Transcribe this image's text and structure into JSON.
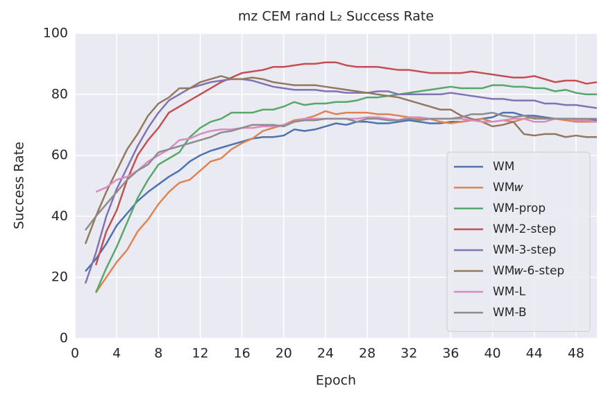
{
  "chart_data": {
    "type": "line",
    "title": "mz CEM rand L₂ Success Rate",
    "x_label": "Epoch",
    "y_label": "Success Rate",
    "x": [
      1,
      2,
      3,
      4,
      5,
      6,
      7,
      8,
      9,
      10,
      11,
      12,
      13,
      14,
      15,
      16,
      17,
      18,
      19,
      20,
      21,
      22,
      23,
      24,
      25,
      26,
      27,
      28,
      29,
      30,
      31,
      32,
      33,
      34,
      35,
      36,
      37,
      38,
      39,
      40,
      41,
      42,
      43,
      44,
      45,
      46,
      47,
      48,
      49,
      50
    ],
    "xlim": [
      0,
      50
    ],
    "xticks": [
      0,
      4,
      8,
      12,
      16,
      20,
      24,
      28,
      32,
      36,
      40,
      44,
      48
    ],
    "ylim": [
      0,
      100
    ],
    "yticks": [
      0,
      20,
      40,
      60,
      80,
      100
    ],
    "grid": true,
    "legend": "lower right",
    "series": [
      {
        "name": "WM",
        "color": "#4c72b0",
        "values": [
          22,
          26,
          31,
          37,
          41,
          45,
          48,
          50.5,
          53,
          55,
          58,
          60,
          61.5,
          62.5,
          63.5,
          64.5,
          65.5,
          66,
          66,
          66.5,
          68.5,
          68,
          68.5,
          69.5,
          70.5,
          70,
          71,
          71,
          70.5,
          70.5,
          71,
          71.5,
          71,
          70.5,
          70.5,
          71,
          71,
          71.5,
          72,
          72.5,
          74,
          74,
          73,
          73,
          72.5,
          72,
          72,
          72,
          71.5,
          71.5
        ]
      },
      {
        "name": "WM𝑤",
        "color": "#dd8452",
        "values": [
          null,
          15,
          20,
          25,
          29,
          35,
          39,
          44,
          48,
          51,
          52,
          55,
          58,
          59,
          62,
          64,
          65.5,
          68,
          69,
          70,
          71.5,
          72,
          73,
          74.5,
          73.5,
          74,
          74,
          74,
          73.5,
          73.5,
          73,
          72.5,
          72,
          72,
          71,
          70.5,
          71,
          71.5,
          72,
          71,
          71.5,
          71,
          72,
          72.5,
          72,
          72,
          71.5,
          71,
          71,
          71
        ]
      },
      {
        "name": "WM-prop",
        "color": "#55a868",
        "values": [
          null,
          15,
          23,
          30,
          38,
          46,
          52,
          57,
          59,
          61,
          66,
          69,
          71,
          72,
          74,
          74,
          74,
          75,
          75,
          76,
          77.5,
          76.5,
          77,
          77,
          77.5,
          77.5,
          78,
          79,
          79,
          79.5,
          80,
          80.5,
          81,
          81.5,
          82,
          82.5,
          82,
          82,
          82,
          83,
          83,
          82.5,
          82.5,
          82,
          82,
          81,
          81.5,
          80.5,
          80,
          80
        ]
      },
      {
        "name": "WM-2-step",
        "color": "#c44e52",
        "values": [
          null,
          24,
          35,
          42,
          52,
          60,
          65,
          69,
          74,
          76,
          78,
          80,
          82,
          84,
          85.5,
          87,
          87.5,
          88,
          89,
          89,
          89.5,
          90,
          90,
          90.5,
          90.5,
          89.5,
          89,
          89,
          89,
          88.5,
          88,
          88,
          87.5,
          87,
          87,
          87,
          87,
          87.5,
          87,
          86.5,
          86,
          85.5,
          85.5,
          86,
          85,
          84,
          84.5,
          84.5,
          83.5,
          84
        ]
      },
      {
        "name": "WM-3-step",
        "color": "#8172b3",
        "values": [
          18,
          28,
          40,
          49,
          56,
          63,
          69,
          74,
          78,
          80,
          82,
          83,
          84,
          84.5,
          85,
          85,
          84.5,
          83.5,
          82.5,
          82,
          81.5,
          81.5,
          81.5,
          81,
          81,
          80.5,
          80.5,
          80.5,
          81,
          81,
          80,
          80,
          80,
          80,
          80,
          80.5,
          80,
          79.5,
          79,
          78.5,
          78.5,
          78,
          78,
          78,
          77,
          77,
          76.5,
          76.5,
          76,
          75.5
        ]
      },
      {
        "name": "WM𝑤-6-step",
        "color": "#937860",
        "values": [
          31,
          40,
          48,
          55,
          62,
          67,
          73,
          77,
          79,
          82,
          82,
          84,
          85,
          86,
          85,
          85,
          85.5,
          85,
          84,
          83.5,
          83,
          83,
          83,
          82.5,
          82,
          81.5,
          81,
          80.5,
          80,
          79.5,
          79,
          78,
          77,
          76,
          75,
          75,
          73,
          72,
          71,
          69.5,
          70,
          71,
          67,
          66.5,
          67,
          67,
          66,
          66.5,
          66,
          66
        ]
      },
      {
        "name": "WM-L",
        "color": "#da8bc3",
        "values": [
          null,
          48,
          49.5,
          52,
          53,
          55,
          58,
          60,
          62,
          65,
          65.5,
          67,
          68,
          68.5,
          68.5,
          69,
          69,
          69.5,
          69.5,
          70,
          71,
          72,
          72,
          72,
          72,
          72,
          72,
          72.5,
          72.5,
          72,
          71.5,
          72.5,
          72.5,
          72,
          72,
          72,
          72,
          71.5,
          71,
          71,
          71.5,
          72,
          72,
          71,
          71,
          72,
          72,
          71.5,
          71.5,
          71
        ]
      },
      {
        "name": "WM-B",
        "color": "#8c8c8c",
        "values": [
          35.5,
          40,
          44,
          48,
          52,
          55,
          57,
          61,
          62,
          63,
          64,
          65,
          66,
          67.5,
          68,
          69,
          70,
          70,
          70,
          69.5,
          71,
          71.5,
          71.5,
          72,
          72,
          72,
          71,
          72,
          72,
          71.5,
          71.5,
          72,
          71.5,
          72,
          72,
          72,
          72.5,
          73.5,
          73.5,
          74,
          73,
          72.5,
          73,
          72,
          72,
          72,
          72,
          72,
          72,
          72
        ]
      }
    ]
  }
}
